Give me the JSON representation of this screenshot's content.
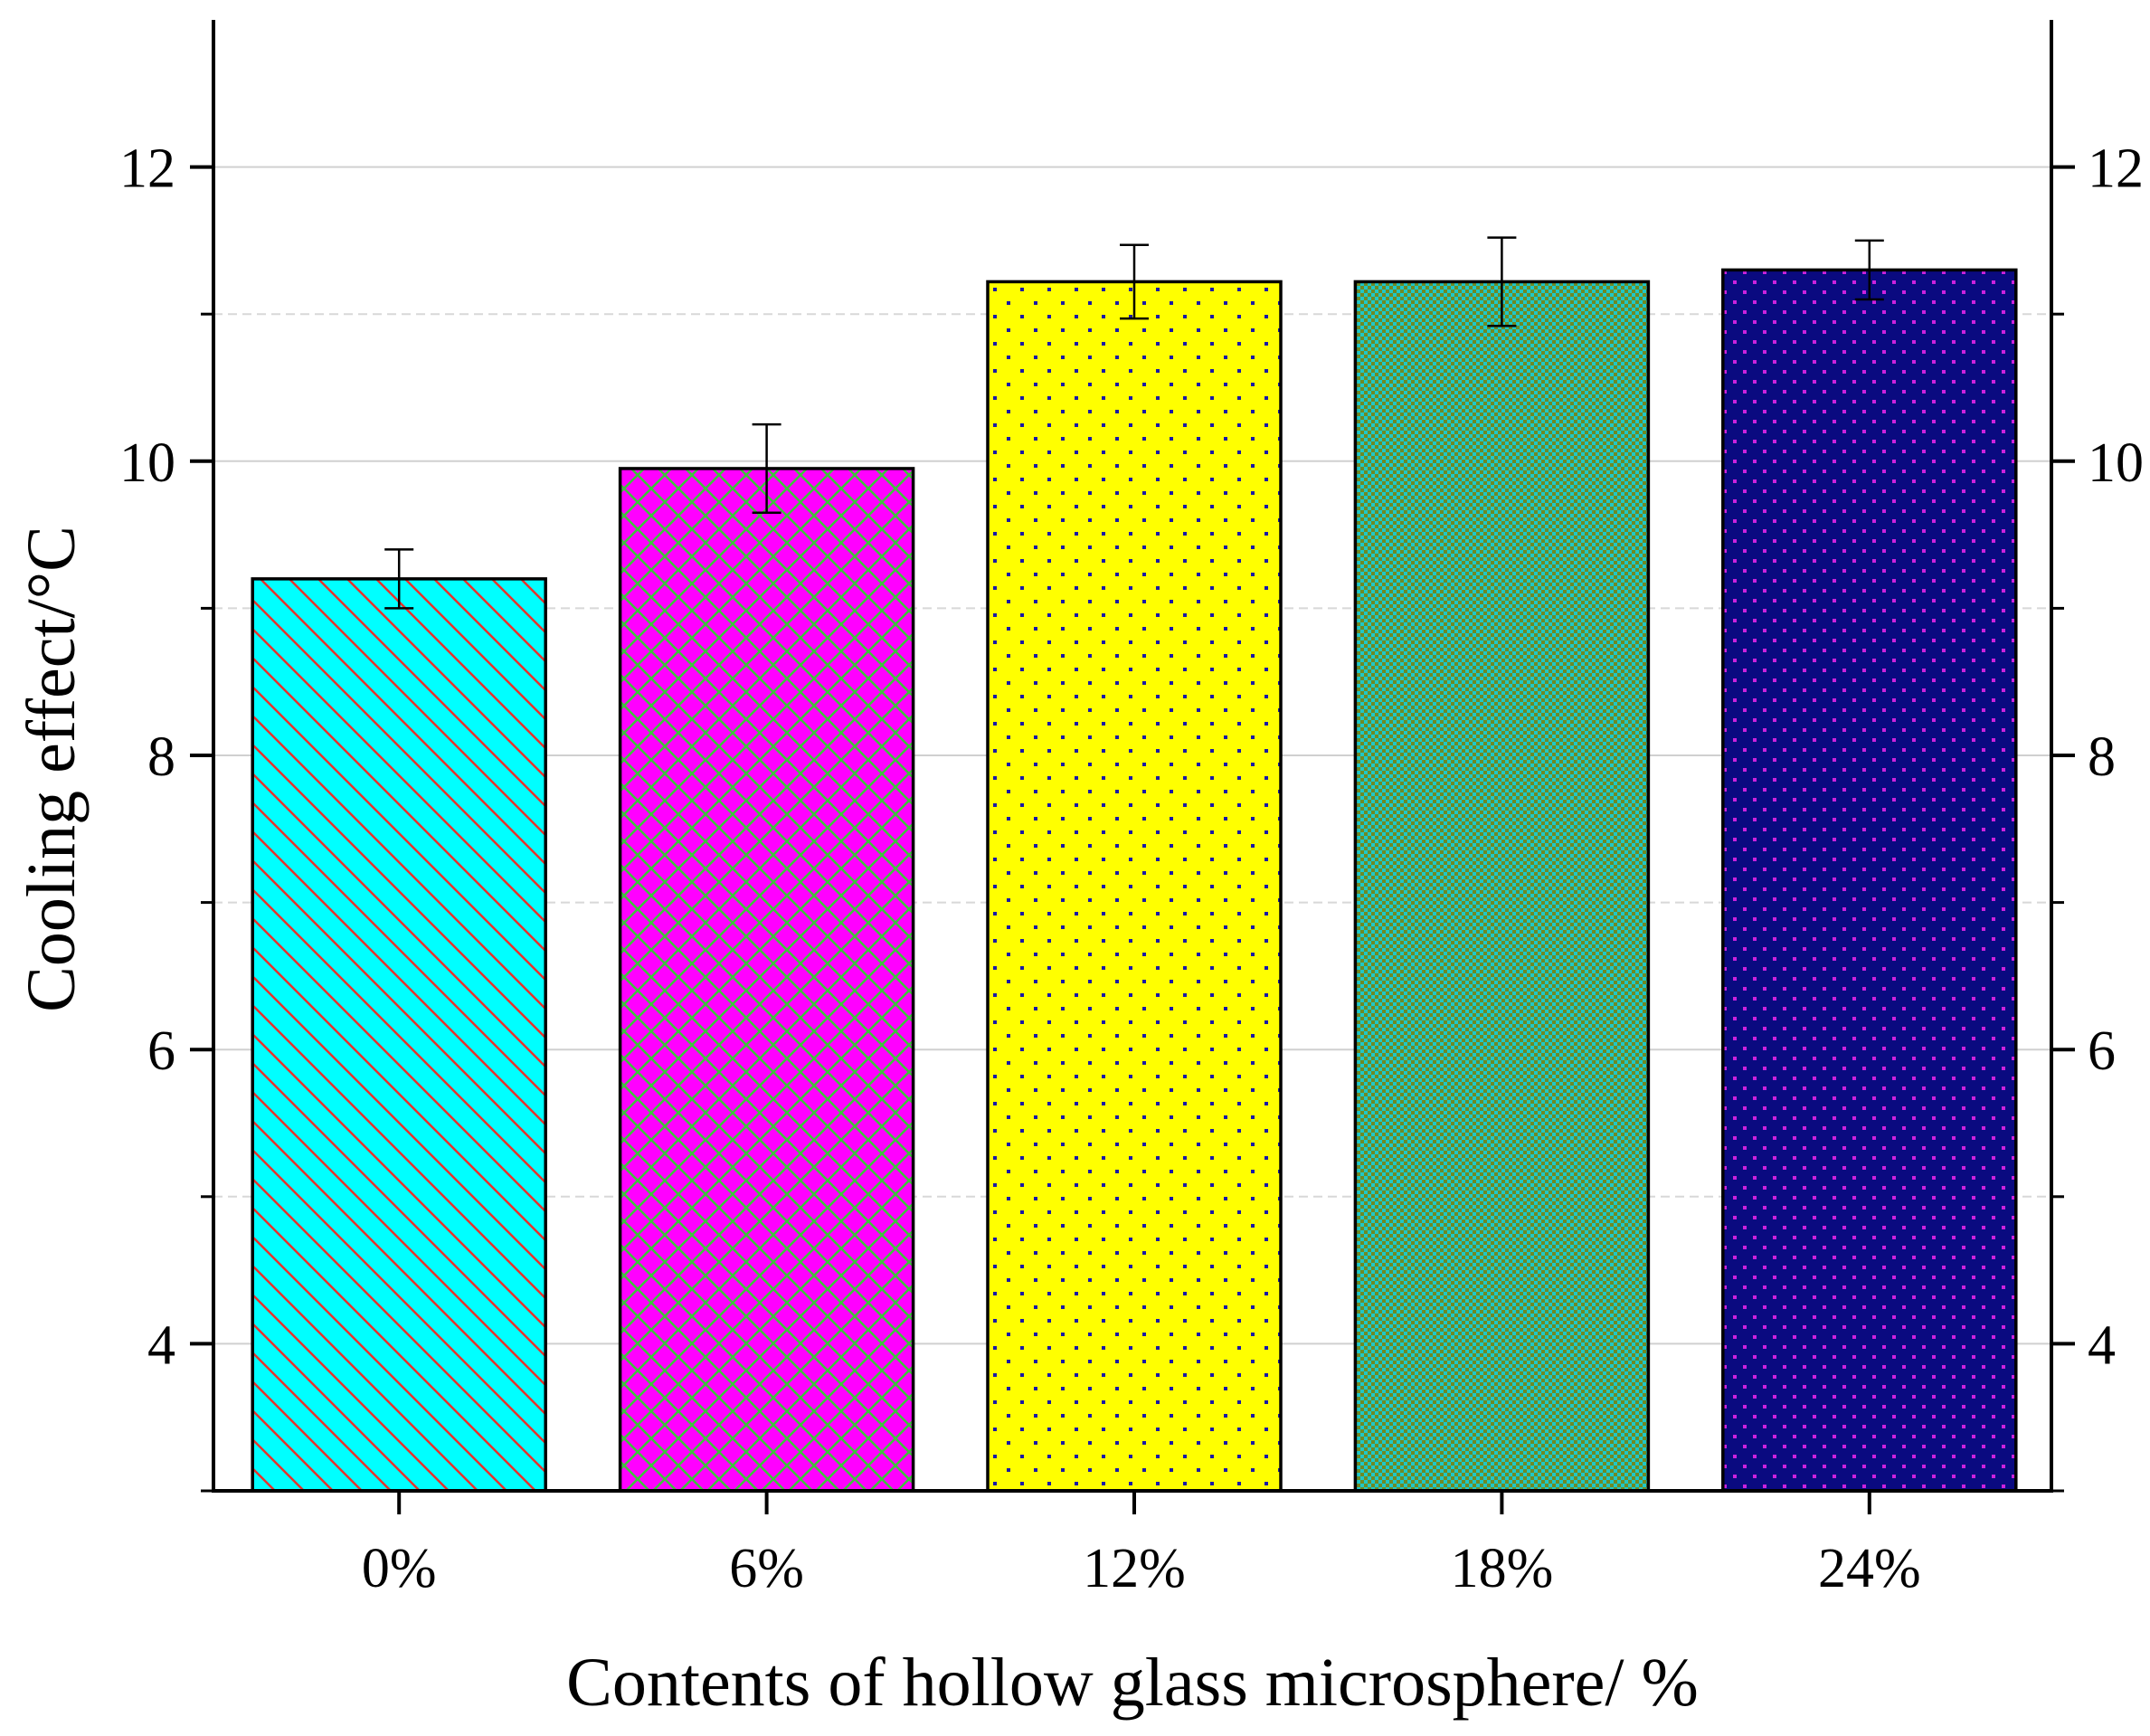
{
  "chart_data": {
    "type": "bar",
    "title": "",
    "xlabel": "Contents of hollow glass microsphere/ %",
    "ylabel": "Cooling effect/°C",
    "categories": [
      "0%",
      "6%",
      "12%",
      "18%",
      "24%"
    ],
    "values": [
      9.2,
      9.95,
      11.22,
      11.22,
      11.3
    ],
    "errors": [
      0.2,
      0.3,
      0.25,
      0.3,
      0.2
    ],
    "ylim": [
      3,
      13
    ],
    "yticks": [
      4,
      6,
      8,
      10,
      12
    ],
    "ytick_labels": [
      "4",
      "6",
      "8",
      "10",
      "12"
    ],
    "right_axis_ticks": [
      4,
      6,
      8,
      10,
      12
    ],
    "right_axis_tick_labels": [
      "4",
      "6",
      "8",
      "10",
      "12"
    ],
    "grid": true,
    "bar_styles": [
      {
        "fill": "#00ffff",
        "pattern": "diagonal",
        "pattern_color": "#e8312b"
      },
      {
        "fill": "#ff00ff",
        "pattern": "crosshatch",
        "pattern_color": "#3cc43c"
      },
      {
        "fill": "#ffff00",
        "pattern": "dots",
        "pattern_color": "#1a1aa6"
      },
      {
        "fill": "#6f8a24",
        "pattern": "checker",
        "pattern_color": "#1ec8c8"
      },
      {
        "fill": "#0a0a80",
        "pattern": "dots",
        "pattern_color": "#cc22dd"
      }
    ]
  }
}
